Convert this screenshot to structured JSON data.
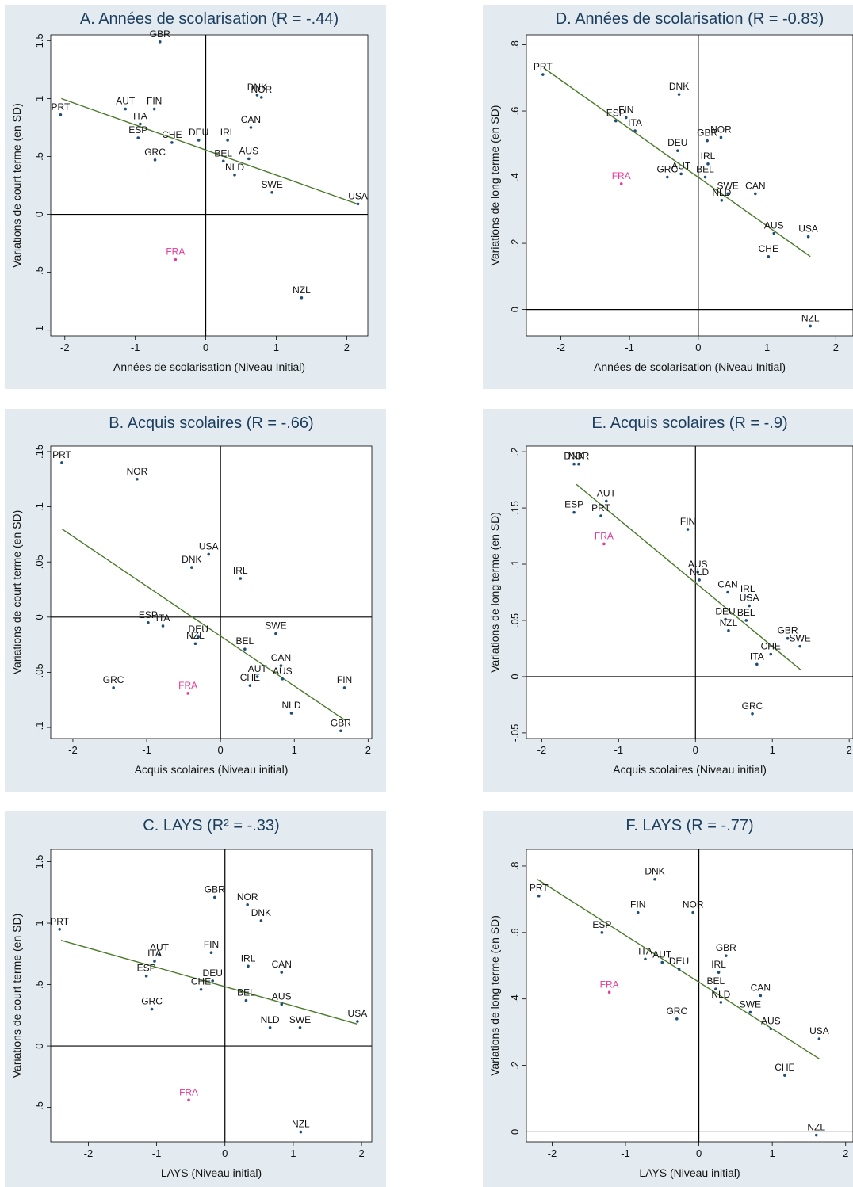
{
  "colors": {
    "panel_bg": "#e3ebf0",
    "plot_bg": "#ffffff",
    "title": "#1b3d5e",
    "point": "#1f4e79",
    "highlight": "#e8399a",
    "fit_line": "#4a7a2a"
  },
  "highlight_label": "FRA",
  "chart_data": [
    {
      "id": "A",
      "type": "scatter",
      "title": "A. Années de scolarisation (R = -.44)",
      "xlabel": "Années de scolarisation (Niveau Initial)",
      "ylabel": "Variations de court terme (en SD)",
      "xlim": [
        -2.2,
        2.3
      ],
      "ylim": [
        -1.05,
        1.55
      ],
      "xticks": [
        -2,
        -1,
        0,
        1,
        2
      ],
      "xtick_labels": [
        "-2",
        "-1",
        "0",
        "1",
        "2"
      ],
      "yticks": [
        -1,
        -0.5,
        0,
        0.5,
        1,
        1.5
      ],
      "ytick_labels": [
        "-1",
        "-.5",
        "0",
        ".5",
        "1",
        "1.5"
      ],
      "fit_line": [
        [
          -2.05,
          1.0
        ],
        [
          2.15,
          0.09
        ]
      ],
      "points": [
        {
          "label": "PRT",
          "x": -2.06,
          "y": 0.86
        },
        {
          "label": "AUT",
          "x": -1.14,
          "y": 0.91
        },
        {
          "label": "FIN",
          "x": -0.73,
          "y": 0.91
        },
        {
          "label": "ITA",
          "x": -0.93,
          "y": 0.78
        },
        {
          "label": "ESP",
          "x": -0.96,
          "y": 0.66
        },
        {
          "label": "CHE",
          "x": -0.48,
          "y": 0.62
        },
        {
          "label": "GRC",
          "x": -0.72,
          "y": 0.47
        },
        {
          "label": "DEU",
          "x": -0.1,
          "y": 0.64
        },
        {
          "label": "IRL",
          "x": 0.31,
          "y": 0.64
        },
        {
          "label": "CAN",
          "x": 0.64,
          "y": 0.75
        },
        {
          "label": "DNK",
          "x": 0.73,
          "y": 1.03
        },
        {
          "label": "NOR",
          "x": 0.79,
          "y": 1.01
        },
        {
          "label": "GBR",
          "x": -0.65,
          "y": 1.49
        },
        {
          "label": "BEL",
          "x": 0.25,
          "y": 0.46
        },
        {
          "label": "AUS",
          "x": 0.61,
          "y": 0.48
        },
        {
          "label": "NLD",
          "x": 0.41,
          "y": 0.34
        },
        {
          "label": "SWE",
          "x": 0.94,
          "y": 0.19
        },
        {
          "label": "USA",
          "x": 2.16,
          "y": 0.09
        },
        {
          "label": "FRA",
          "x": -0.43,
          "y": -0.39
        },
        {
          "label": "NZL",
          "x": 1.36,
          "y": -0.72
        }
      ]
    },
    {
      "id": "D",
      "type": "scatter",
      "title": "D. Années de scolarisation (R = -0.83)",
      "xlabel": "Années de scolarisation (Niveau Initial)",
      "ylabel": "Variations de long terme (en SD)",
      "xlim": [
        -2.5,
        2.25
      ],
      "ylim": [
        -0.08,
        0.83
      ],
      "xticks": [
        -2,
        -1,
        0,
        1,
        2
      ],
      "xtick_labels": [
        "-2",
        "-1",
        "0",
        "1",
        "2"
      ],
      "yticks": [
        0,
        0.2,
        0.4,
        0.6,
        0.8
      ],
      "ytick_labels": [
        "0",
        ".2",
        ".4",
        ".6",
        ".8"
      ],
      "fit_line": [
        [
          -2.25,
          0.73
        ],
        [
          1.63,
          0.16
        ]
      ],
      "points": [
        {
          "label": "PRT",
          "x": -2.26,
          "y": 0.71
        },
        {
          "label": "DNK",
          "x": -0.28,
          "y": 0.65
        },
        {
          "label": "ESP",
          "x": -1.2,
          "y": 0.57
        },
        {
          "label": "FIN",
          "x": -1.05,
          "y": 0.58
        },
        {
          "label": "ITA",
          "x": -0.92,
          "y": 0.54
        },
        {
          "label": "GBR",
          "x": 0.13,
          "y": 0.51
        },
        {
          "label": "NOR",
          "x": 0.33,
          "y": 0.52
        },
        {
          "label": "DEU",
          "x": -0.3,
          "y": 0.48
        },
        {
          "label": "IRL",
          "x": 0.14,
          "y": 0.44
        },
        {
          "label": "FRA",
          "x": -1.12,
          "y": 0.38
        },
        {
          "label": "GRC",
          "x": -0.45,
          "y": 0.4
        },
        {
          "label": "AUT",
          "x": -0.25,
          "y": 0.41
        },
        {
          "label": "BEL",
          "x": 0.1,
          "y": 0.4
        },
        {
          "label": "SWE",
          "x": 0.43,
          "y": 0.35
        },
        {
          "label": "NLD",
          "x": 0.34,
          "y": 0.33
        },
        {
          "label": "CAN",
          "x": 0.83,
          "y": 0.35
        },
        {
          "label": "AUS",
          "x": 1.1,
          "y": 0.23
        },
        {
          "label": "USA",
          "x": 1.6,
          "y": 0.22
        },
        {
          "label": "CHE",
          "x": 1.02,
          "y": 0.16
        },
        {
          "label": "NZL",
          "x": 1.63,
          "y": -0.05
        }
      ]
    },
    {
      "id": "B",
      "type": "scatter",
      "title": "B. Acquis scolaires (R = -.66)",
      "xlabel": "Acquis scolaires (Niveau initial)",
      "ylabel": "Variations de court terme (en SD)",
      "xlim": [
        -2.3,
        2.05
      ],
      "ylim": [
        -0.11,
        0.155
      ],
      "xticks": [
        -2,
        -1,
        0,
        1,
        2
      ],
      "xtick_labels": [
        "-2",
        "-1",
        "0",
        "1",
        "2"
      ],
      "yticks": [
        -0.1,
        -0.05,
        0,
        0.05,
        0.1,
        0.15
      ],
      "ytick_labels": [
        "-.1",
        "-.05",
        "0",
        ".05",
        ".1",
        ".15"
      ],
      "fit_line": [
        [
          -2.15,
          0.08
        ],
        [
          1.7,
          -0.094
        ]
      ],
      "points": [
        {
          "label": "PRT",
          "x": -2.15,
          "y": 0.14
        },
        {
          "label": "NOR",
          "x": -1.13,
          "y": 0.125
        },
        {
          "label": "USA",
          "x": -0.16,
          "y": 0.057
        },
        {
          "label": "DNK",
          "x": -0.39,
          "y": 0.045
        },
        {
          "label": "IRL",
          "x": 0.27,
          "y": 0.035
        },
        {
          "label": "ESP",
          "x": -0.98,
          "y": -0.005
        },
        {
          "label": "ITA",
          "x": -0.78,
          "y": -0.008
        },
        {
          "label": "SWE",
          "x": 0.75,
          "y": -0.015
        },
        {
          "label": "DEU",
          "x": -0.3,
          "y": -0.018
        },
        {
          "label": "NZL",
          "x": -0.34,
          "y": -0.024
        },
        {
          "label": "BEL",
          "x": 0.33,
          "y": -0.029
        },
        {
          "label": "CAN",
          "x": 0.82,
          "y": -0.044
        },
        {
          "label": "AUT",
          "x": 0.5,
          "y": -0.054
        },
        {
          "label": "AUS",
          "x": 0.84,
          "y": -0.056
        },
        {
          "label": "CHE",
          "x": 0.4,
          "y": -0.062
        },
        {
          "label": "GRC",
          "x": -1.45,
          "y": -0.064
        },
        {
          "label": "FRA",
          "x": -0.44,
          "y": -0.069
        },
        {
          "label": "FIN",
          "x": 1.68,
          "y": -0.064
        },
        {
          "label": "NLD",
          "x": 0.96,
          "y": -0.087
        },
        {
          "label": "GBR",
          "x": 1.63,
          "y": -0.103
        }
      ]
    },
    {
      "id": "E",
      "type": "scatter",
      "title": "E. Acquis scolaires (R = -.9)",
      "xlabel": "Acquis scolaires (Niveau initial)",
      "ylabel": "Variations de long terme (en SD)",
      "xlim": [
        -2.2,
        2.05
      ],
      "ylim": [
        -0.055,
        0.205
      ],
      "xticks": [
        -2,
        -1,
        0,
        1,
        2
      ],
      "xtick_labels": [
        "-2",
        "-1",
        "0",
        "1",
        "2"
      ],
      "yticks": [
        -0.05,
        0,
        0.05,
        0.1,
        0.15,
        0.2
      ],
      "ytick_labels": [
        "-.05",
        "0",
        ".05",
        ".1",
        ".15",
        ".2"
      ],
      "fit_line": [
        [
          -1.55,
          0.171
        ],
        [
          1.37,
          0.006
        ]
      ],
      "points": [
        {
          "label": "DNK",
          "x": -1.58,
          "y": 0.189
        },
        {
          "label": "NOR",
          "x": -1.52,
          "y": 0.189
        },
        {
          "label": "AUT",
          "x": -1.16,
          "y": 0.156
        },
        {
          "label": "ESP",
          "x": -1.58,
          "y": 0.146
        },
        {
          "label": "PRT",
          "x": -1.23,
          "y": 0.143
        },
        {
          "label": "FIN",
          "x": -0.1,
          "y": 0.131
        },
        {
          "label": "FRA",
          "x": -1.19,
          "y": 0.118
        },
        {
          "label": "AUS",
          "x": 0.03,
          "y": 0.093
        },
        {
          "label": "NLD",
          "x": 0.05,
          "y": 0.086
        },
        {
          "label": "CAN",
          "x": 0.42,
          "y": 0.075
        },
        {
          "label": "IRL",
          "x": 0.68,
          "y": 0.071
        },
        {
          "label": "USA",
          "x": 0.7,
          "y": 0.063
        },
        {
          "label": "DEU",
          "x": 0.39,
          "y": 0.051
        },
        {
          "label": "BEL",
          "x": 0.66,
          "y": 0.05
        },
        {
          "label": "NZL",
          "x": 0.43,
          "y": 0.041
        },
        {
          "label": "GBR",
          "x": 1.2,
          "y": 0.034
        },
        {
          "label": "SWE",
          "x": 1.36,
          "y": 0.027
        },
        {
          "label": "CHE",
          "x": 0.98,
          "y": 0.02
        },
        {
          "label": "ITA",
          "x": 0.8,
          "y": 0.011
        },
        {
          "label": "GRC",
          "x": 0.74,
          "y": -0.033
        }
      ]
    },
    {
      "id": "C",
      "type": "scatter",
      "title": "C. LAYS (R² = -.33)",
      "xlabel": "LAYS (Niveau initial)",
      "ylabel": "Variations de court terme (en SD)",
      "xlim": [
        -2.55,
        2.15
      ],
      "ylim": [
        -0.78,
        1.6
      ],
      "xticks": [
        -2,
        -1,
        0,
        1,
        2
      ],
      "xtick_labels": [
        "-2",
        "-1",
        "0",
        "1",
        "2"
      ],
      "yticks": [
        -0.5,
        0,
        0.5,
        1,
        1.5
      ],
      "ytick_labels": [
        "-.5",
        "0",
        ".5",
        "1",
        "1.5"
      ],
      "fit_line": [
        [
          -2.4,
          0.86
        ],
        [
          1.93,
          0.18
        ]
      ],
      "points": [
        {
          "label": "PRT",
          "x": -2.42,
          "y": 0.95
        },
        {
          "label": "GBR",
          "x": -0.15,
          "y": 1.21
        },
        {
          "label": "NOR",
          "x": 0.33,
          "y": 1.15
        },
        {
          "label": "DNK",
          "x": 0.53,
          "y": 1.02
        },
        {
          "label": "AUT",
          "x": -0.96,
          "y": 0.74
        },
        {
          "label": "ITA",
          "x": -1.03,
          "y": 0.69
        },
        {
          "label": "FIN",
          "x": -0.2,
          "y": 0.76
        },
        {
          "label": "ESP",
          "x": -1.15,
          "y": 0.57
        },
        {
          "label": "IRL",
          "x": 0.34,
          "y": 0.65
        },
        {
          "label": "CAN",
          "x": 0.83,
          "y": 0.6
        },
        {
          "label": "DEU",
          "x": -0.18,
          "y": 0.53
        },
        {
          "label": "CHE",
          "x": -0.35,
          "y": 0.46
        },
        {
          "label": "BEL",
          "x": 0.31,
          "y": 0.37
        },
        {
          "label": "AUS",
          "x": 0.83,
          "y": 0.34
        },
        {
          "label": "GRC",
          "x": -1.07,
          "y": 0.3
        },
        {
          "label": "USA",
          "x": 1.94,
          "y": 0.2
        },
        {
          "label": "NLD",
          "x": 0.66,
          "y": 0.15
        },
        {
          "label": "SWE",
          "x": 1.1,
          "y": 0.15
        },
        {
          "label": "FRA",
          "x": -0.53,
          "y": -0.44
        },
        {
          "label": "NZL",
          "x": 1.11,
          "y": -0.7
        }
      ]
    },
    {
      "id": "F",
      "type": "scatter",
      "title": "F. LAYS (R = -.77)",
      "xlabel": "LAYS (Niveau initial)",
      "ylabel": "Variations de long terme (en SD)",
      "xlim": [
        -2.35,
        2.1
      ],
      "ylim": [
        -0.03,
        0.85
      ],
      "xticks": [
        -2,
        -1,
        0,
        1,
        2
      ],
      "xtick_labels": [
        "-2",
        "-1",
        "0",
        "1",
        "2"
      ],
      "yticks": [
        0,
        0.2,
        0.4,
        0.6,
        0.8
      ],
      "ytick_labels": [
        "0",
        ".2",
        ".4",
        ".6",
        ".8"
      ],
      "fit_line": [
        [
          -2.2,
          0.76
        ],
        [
          1.64,
          0.22
        ]
      ],
      "points": [
        {
          "label": "PRT",
          "x": -2.18,
          "y": 0.71
        },
        {
          "label": "DNK",
          "x": -0.6,
          "y": 0.76
        },
        {
          "label": "FIN",
          "x": -0.83,
          "y": 0.66
        },
        {
          "label": "NOR",
          "x": -0.08,
          "y": 0.66
        },
        {
          "label": "ESP",
          "x": -1.32,
          "y": 0.6
        },
        {
          "label": "GBR",
          "x": 0.37,
          "y": 0.53
        },
        {
          "label": "ITA",
          "x": -0.73,
          "y": 0.52
        },
        {
          "label": "AUT",
          "x": -0.5,
          "y": 0.51
        },
        {
          "label": "DEU",
          "x": -0.27,
          "y": 0.49
        },
        {
          "label": "IRL",
          "x": 0.27,
          "y": 0.48
        },
        {
          "label": "BEL",
          "x": 0.23,
          "y": 0.43
        },
        {
          "label": "CAN",
          "x": 0.84,
          "y": 0.41
        },
        {
          "label": "FRA",
          "x": -1.22,
          "y": 0.42
        },
        {
          "label": "NLD",
          "x": 0.3,
          "y": 0.39
        },
        {
          "label": "SWE",
          "x": 0.7,
          "y": 0.36
        },
        {
          "label": "GRC",
          "x": -0.3,
          "y": 0.34
        },
        {
          "label": "AUS",
          "x": 0.98,
          "y": 0.31
        },
        {
          "label": "USA",
          "x": 1.64,
          "y": 0.28
        },
        {
          "label": "CHE",
          "x": 1.17,
          "y": 0.17
        },
        {
          "label": "NZL",
          "x": 1.6,
          "y": -0.01
        }
      ]
    }
  ]
}
